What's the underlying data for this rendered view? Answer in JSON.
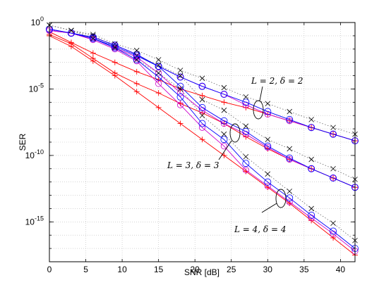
{
  "chart_data": {
    "type": "line",
    "xlabel": "SNR [dB]",
    "ylabel": "SER",
    "xlim": [
      0,
      42
    ],
    "ylim_log10": [
      -18,
      0
    ],
    "yscale": "log",
    "grid": true,
    "x_ticks": [
      0,
      5,
      10,
      15,
      20,
      25,
      30,
      35,
      40
    ],
    "y_ticks": [
      {
        "base": "10",
        "exp": "0",
        "value": 0
      },
      {
        "base": "10",
        "exp": "-5",
        "value": -5
      },
      {
        "base": "10",
        "exp": "-10",
        "value": -10
      },
      {
        "base": "10",
        "exp": "-15",
        "value": -15
      }
    ],
    "colors": {
      "red": "#ff0000",
      "blue": "#0000ff",
      "magenta": "#cc00cc",
      "black": "#000000",
      "dotted": "#666666",
      "grid": "#bbbbbb"
    },
    "groups": [
      {
        "annotation": "L = 2, δ = 2",
        "x": [
          0,
          3,
          6,
          9,
          12,
          15,
          18,
          21,
          24,
          27,
          30,
          33,
          36,
          39,
          42
        ],
        "red_log10": [
          -0.7,
          -1.5,
          -2.3,
          -3.0,
          -3.7,
          -4.3,
          -5.0,
          -5.5,
          -6.0,
          -6.4,
          -6.9,
          -7.4,
          -7.9,
          -8.4,
          -8.9
        ],
        "blue_log10": [
          -0.5,
          -0.8,
          -1.1,
          -1.7,
          -2.4,
          -3.3,
          -4.1,
          -4.8,
          -5.4,
          -6.0,
          -6.7,
          -7.3,
          -7.9,
          -8.4,
          -8.9
        ],
        "magenta_log10": [
          -0.6,
          -0.8,
          -1.1,
          -1.7,
          -2.4,
          -3.3,
          -4.1,
          -4.8,
          -5.4,
          -6.2,
          -6.9,
          -7.4,
          -7.9,
          -8.4,
          -8.9
        ],
        "black_x_log10": [
          -0.2,
          -0.6,
          -0.9,
          -1.6,
          -2.1,
          -2.8,
          -3.6,
          -4.2,
          -4.9,
          -5.6,
          -6.1,
          -6.7,
          -7.3,
          -7.9,
          -8.4
        ]
      },
      {
        "annotation": "L = 3, δ = 3",
        "x": [
          0,
          3,
          6,
          9,
          12,
          15,
          18,
          21,
          24,
          27,
          30,
          33,
          36,
          39,
          42
        ],
        "red_log10": [
          -0.9,
          -1.6,
          -2.7,
          -3.8,
          -4.6,
          -5.3,
          -6.1,
          -6.8,
          -7.6,
          -8.6,
          -9.5,
          -10.3,
          -11.0,
          -11.7,
          -12.4
        ],
        "blue_log10": [
          -0.5,
          -0.8,
          -1.2,
          -1.8,
          -2.5,
          -3.3,
          -4.8,
          -6.4,
          -7.4,
          -8.2,
          -9.3,
          -10.2,
          -11.0,
          -11.7,
          -12.4
        ],
        "magenta_log10": [
          -0.6,
          -0.8,
          -1.2,
          -1.9,
          -2.6,
          -3.8,
          -5.3,
          -6.6,
          -7.6,
          -8.4,
          -9.4,
          -10.3,
          -11.0,
          -11.7,
          -12.4
        ],
        "black_x_log10": [
          -0.2,
          -0.6,
          -1.0,
          -1.8,
          -2.5,
          -3.2,
          -4.0,
          -5.8,
          -6.6,
          -7.8,
          -8.8,
          -9.5,
          -10.3,
          -11.0,
          -11.8
        ]
      },
      {
        "annotation": "L = 4, δ = 4",
        "x": [
          0,
          3,
          6,
          9,
          12,
          15,
          18,
          21,
          24,
          27,
          30,
          33,
          36,
          39,
          42
        ],
        "red_log10": [
          -1.0,
          -1.8,
          -2.9,
          -4.0,
          -5.2,
          -6.4,
          -7.6,
          -8.8,
          -10.0,
          -11.2,
          -12.4,
          -13.6,
          -14.9,
          -16.2,
          -17.5
        ],
        "blue_log10": [
          -0.5,
          -0.8,
          -1.2,
          -1.9,
          -2.8,
          -4.1,
          -5.6,
          -7.6,
          -8.8,
          -10.6,
          -12.0,
          -13.2,
          -14.5,
          -15.7,
          -17.0
        ],
        "magenta_log10": [
          -0.6,
          -0.8,
          -1.3,
          -2.0,
          -2.9,
          -4.6,
          -6.2,
          -7.9,
          -9.3,
          -11.1,
          -12.3,
          -13.5,
          -14.7,
          -15.9,
          -17.2
        ],
        "black_x_log10": [
          -0.2,
          -0.6,
          -1.2,
          -1.9,
          -2.8,
          -3.8,
          -5.0,
          -7.0,
          -8.4,
          -10.1,
          -11.4,
          -12.7,
          -14.0,
          -15.1,
          -16.4
        ]
      }
    ]
  }
}
